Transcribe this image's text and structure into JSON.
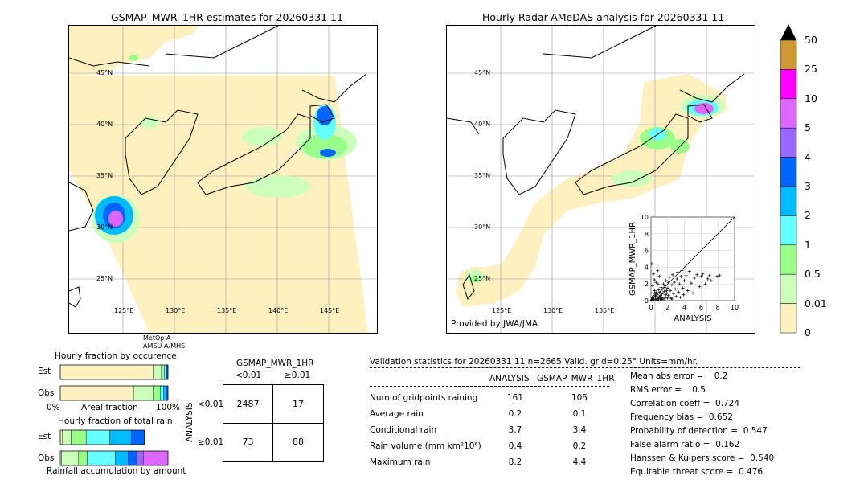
{
  "left_panel": {
    "title": "GSMAP_MWR_1HR estimates for 20260331 11",
    "sat_line1": "MetOp-A",
    "sat_line2": "AMSU-A/MHS",
    "lat_labels": [
      "45°N",
      "40°N",
      "35°N",
      "30°N",
      "25°N"
    ],
    "lon_labels": [
      "125°E",
      "130°E",
      "135°E",
      "140°E",
      "145°E"
    ]
  },
  "right_panel": {
    "title": "Hourly Radar-AMeDAS analysis for 20260331 11",
    "provider": "Provided by JWA/JMA",
    "lat_labels": [
      "45°N",
      "40°N",
      "35°N",
      "30°N",
      "25°N"
    ],
    "lon_labels": [
      "125°E",
      "130°E",
      "135°E"
    ]
  },
  "colorbar": {
    "labels": [
      "50",
      "25",
      "10",
      "5",
      "4",
      "3",
      "2",
      "1",
      "0.5",
      "0.01",
      "0"
    ],
    "colors": [
      "#cc9933",
      "#ff00ff",
      "#dd66ff",
      "#9966ff",
      "#0066ff",
      "#00bbff",
      "#66ffff",
      "#99ff88",
      "#ccffbb",
      "#fff0c0"
    ],
    "extend_color": "#000000"
  },
  "scatter": {
    "xlabel": "ANALYSIS",
    "ylabel": "GSMAP_MWR_1HR",
    "ticks": [
      "0",
      "2",
      "4",
      "6",
      "8",
      "10"
    ]
  },
  "chart_data": [
    {
      "type": "scatter",
      "title": "",
      "xlabel": "ANALYSIS",
      "ylabel": "GSMAP_MWR_1HR",
      "xlim": [
        0,
        10
      ],
      "ylim": [
        0,
        10
      ],
      "grid": true,
      "points": [
        [
          0.1,
          0.1
        ],
        [
          0.2,
          0.3
        ],
        [
          0.3,
          0.1
        ],
        [
          0.4,
          0.6
        ],
        [
          0.5,
          0.2
        ],
        [
          0.6,
          1.0
        ],
        [
          0.7,
          0.4
        ],
        [
          0.8,
          0.1
        ],
        [
          0.9,
          1.3
        ],
        [
          1.0,
          0.5
        ],
        [
          1.1,
          0.2
        ],
        [
          1.2,
          1.6
        ],
        [
          1.3,
          0.8
        ],
        [
          1.4,
          0.3
        ],
        [
          1.5,
          2.0
        ],
        [
          1.6,
          1.1
        ],
        [
          1.7,
          0.4
        ],
        [
          1.8,
          2.4
        ],
        [
          1.9,
          0.9
        ],
        [
          2.0,
          1.5
        ],
        [
          2.1,
          0.6
        ],
        [
          2.2,
          2.8
        ],
        [
          2.3,
          1.2
        ],
        [
          2.4,
          0.3
        ],
        [
          2.5,
          1.9
        ],
        [
          2.6,
          3.1
        ],
        [
          2.7,
          0.8
        ],
        [
          2.8,
          2.2
        ],
        [
          2.9,
          1.4
        ],
        [
          3.0,
          0.5
        ],
        [
          3.1,
          2.6
        ],
        [
          3.2,
          3.4
        ],
        [
          3.3,
          1.0
        ],
        [
          3.4,
          2.0
        ],
        [
          3.5,
          0.4
        ],
        [
          3.6,
          2.9
        ],
        [
          3.7,
          3.6
        ],
        [
          3.8,
          1.5
        ],
        [
          3.9,
          0.7
        ],
        [
          4.0,
          2.4
        ],
        [
          4.2,
          3.0
        ],
        [
          4.4,
          1.2
        ],
        [
          4.6,
          3.5
        ],
        [
          4.8,
          2.1
        ],
        [
          5.0,
          0.9
        ],
        [
          5.2,
          2.7
        ],
        [
          5.5,
          3.1
        ],
        [
          5.8,
          1.7
        ],
        [
          6.0,
          2.9
        ],
        [
          6.2,
          3.2
        ],
        [
          6.5,
          2.0
        ],
        [
          6.8,
          2.6
        ],
        [
          7.0,
          3.0
        ],
        [
          7.2,
          2.4
        ],
        [
          7.9,
          2.9
        ],
        [
          8.2,
          3.0
        ],
        [
          0.2,
          1.8
        ],
        [
          0.4,
          2.5
        ],
        [
          0.3,
          3.2
        ],
        [
          0.6,
          2.2
        ],
        [
          0.8,
          3.6
        ],
        [
          1.0,
          2.9
        ],
        [
          1.2,
          3.8
        ],
        [
          0.1,
          4.4
        ],
        [
          0.5,
          0.8
        ],
        [
          0.9,
          0.2
        ],
        [
          1.3,
          0.1
        ],
        [
          1.7,
          1.8
        ],
        [
          2.1,
          2.2
        ],
        [
          2.5,
          0.2
        ],
        [
          0.05,
          0.05
        ],
        [
          0.15,
          0.4
        ],
        [
          0.25,
          0.9
        ],
        [
          0.35,
          0.2
        ],
        [
          0.45,
          1.2
        ],
        [
          0.55,
          0.5
        ],
        [
          0.65,
          0.1
        ],
        [
          0.75,
          0.7
        ],
        [
          0.85,
          2.0
        ],
        [
          0.95,
          0.3
        ],
        [
          1.05,
          1.0
        ],
        [
          1.15,
          0.6
        ],
        [
          1.25,
          0.4
        ],
        [
          1.35,
          1.4
        ],
        [
          1.45,
          0.9
        ],
        [
          1.55,
          0.2
        ],
        [
          1.65,
          1.6
        ],
        [
          1.75,
          0.7
        ],
        [
          1.85,
          1.2
        ],
        [
          1.95,
          0.3
        ]
      ]
    },
    {
      "type": "bar",
      "title": "Hourly fraction by occurence",
      "xlabel": "Areal fraction",
      "categories": [
        "Est",
        "Obs"
      ],
      "xtick_labels": [
        "0%",
        "100%"
      ],
      "series": [
        {
          "color": "#fff0c0",
          "values": [
            0.86,
            0.68
          ]
        },
        {
          "color": "#ccffbb",
          "values": [
            0.08,
            0.18
          ]
        },
        {
          "color": "#99ff88",
          "values": [
            0.025,
            0.07
          ]
        },
        {
          "color": "#66ffff",
          "values": [
            0.015,
            0.03
          ]
        },
        {
          "color": "#00bbff",
          "values": [
            0.01,
            0.02
          ]
        },
        {
          "color": "#0066ff",
          "values": [
            0.01,
            0.02
          ]
        }
      ]
    },
    {
      "type": "bar",
      "title": "Hourly fraction of total rain",
      "xlabel": "Rainfall accumulation by amount",
      "categories": [
        "Est",
        "Obs"
      ],
      "series": [
        {
          "color": "#fff0c0",
          "values": [
            0.02,
            0.01
          ]
        },
        {
          "color": "#ccffbb",
          "values": [
            0.08,
            0.16
          ]
        },
        {
          "color": "#99ff88",
          "values": [
            0.14,
            0.08
          ]
        },
        {
          "color": "#66ffff",
          "values": [
            0.22,
            0.26
          ]
        },
        {
          "color": "#00bbff",
          "values": [
            0.2,
            0.12
          ]
        },
        {
          "color": "#0066ff",
          "values": [
            0.12,
            0.08
          ]
        },
        {
          "color": "#9966ff",
          "values": [
            0.0,
            0.06
          ]
        },
        {
          "color": "#dd66ff",
          "values": [
            0.0,
            0.23
          ]
        }
      ]
    },
    {
      "type": "table",
      "title": "GSMAP_MWR_1HR",
      "row_header": "ANALYSIS",
      "col_labels": [
        "<0.01",
        "≥0.01"
      ],
      "row_labels": [
        "<0.01",
        "≥0.01"
      ],
      "cells": [
        [
          "2487",
          "17"
        ],
        [
          "73",
          "88"
        ]
      ]
    }
  ],
  "validation": {
    "header": "Validation statistics for 20260331 11  n=2665 Valid. grid=0.25° Units=mm/hr.",
    "col_analysis": "ANALYSIS",
    "col_gsmap": "GSMAP_MWR_1HR",
    "rows": [
      {
        "label": "Num of gridpoints raining",
        "a": "161",
        "g": "105"
      },
      {
        "label": "Average rain",
        "a": "0.2",
        "g": "0.1"
      },
      {
        "label": "Conditional rain",
        "a": "3.7",
        "g": "3.4"
      },
      {
        "label": "Rain volume (mm km²10⁶)",
        "a": "0.4",
        "g": "0.2"
      },
      {
        "label": "Maximum rain",
        "a": "8.2",
        "g": "4.4"
      }
    ],
    "scores": [
      "Mean abs error =    0.2",
      "RMS error =    0.5",
      "Correlation coeff =  0.724",
      "Frequency bias =  0.652",
      "Probability of detection =  0.547",
      "False alarm ratio =  0.162",
      "Hanssen & Kuipers score =  0.540",
      "Equitable threat score =  0.476"
    ]
  }
}
